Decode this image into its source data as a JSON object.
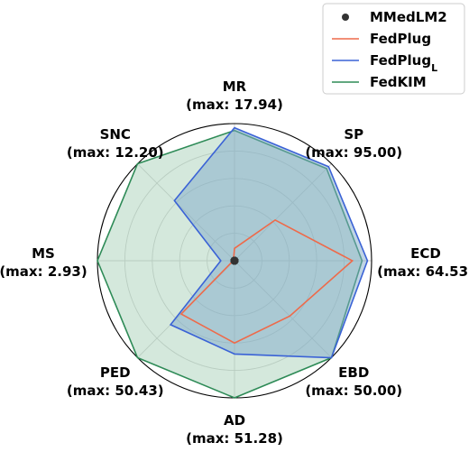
{
  "chart_data": {
    "type": "radar",
    "axes": [
      {
        "name": "MR",
        "max_label": "(max: 17.94)"
      },
      {
        "name": "SP",
        "max_label": "(max: 95.00)"
      },
      {
        "name": "ECD",
        "max_label": "(max: 64.53)"
      },
      {
        "name": "EBD",
        "max_label": "(max: 50.00)"
      },
      {
        "name": "AD",
        "max_label": "(max: 51.28)"
      },
      {
        "name": "PED",
        "max_label": "(max: 50.43)"
      },
      {
        "name": "MS",
        "max_label": "(max: 2.93)"
      },
      {
        "name": "SNC",
        "max_label": "(max: 12.20)"
      }
    ],
    "normalized_range": [
      0,
      1
    ],
    "grid": true,
    "legend_position": "top-right",
    "series": [
      {
        "name": "MMedLM2",
        "style": "marker",
        "color": "#333333",
        "values": [
          0,
          0,
          0,
          0,
          0,
          0,
          0,
          0
        ]
      },
      {
        "name": "FedPlug",
        "style": "line",
        "color": "#ee6a4a",
        "values": [
          0.09,
          0.42,
          0.86,
          0.57,
          0.6,
          0.55,
          0.01,
          0.01
        ]
      },
      {
        "name": "FedPlug",
        "name_subscript": "L",
        "style": "line-fill",
        "color": "#3a62d6",
        "fill": "#7fa9c9",
        "values": [
          0.97,
          0.97,
          0.97,
          1.0,
          0.68,
          0.66,
          0.1,
          0.62
        ]
      },
      {
        "name": "FedKIM",
        "style": "line-fill",
        "color": "#2e8b57",
        "fill": "#a9d1b9",
        "values": [
          0.95,
          0.95,
          0.93,
          1.0,
          1.0,
          1.0,
          1.0,
          1.0
        ]
      }
    ]
  }
}
